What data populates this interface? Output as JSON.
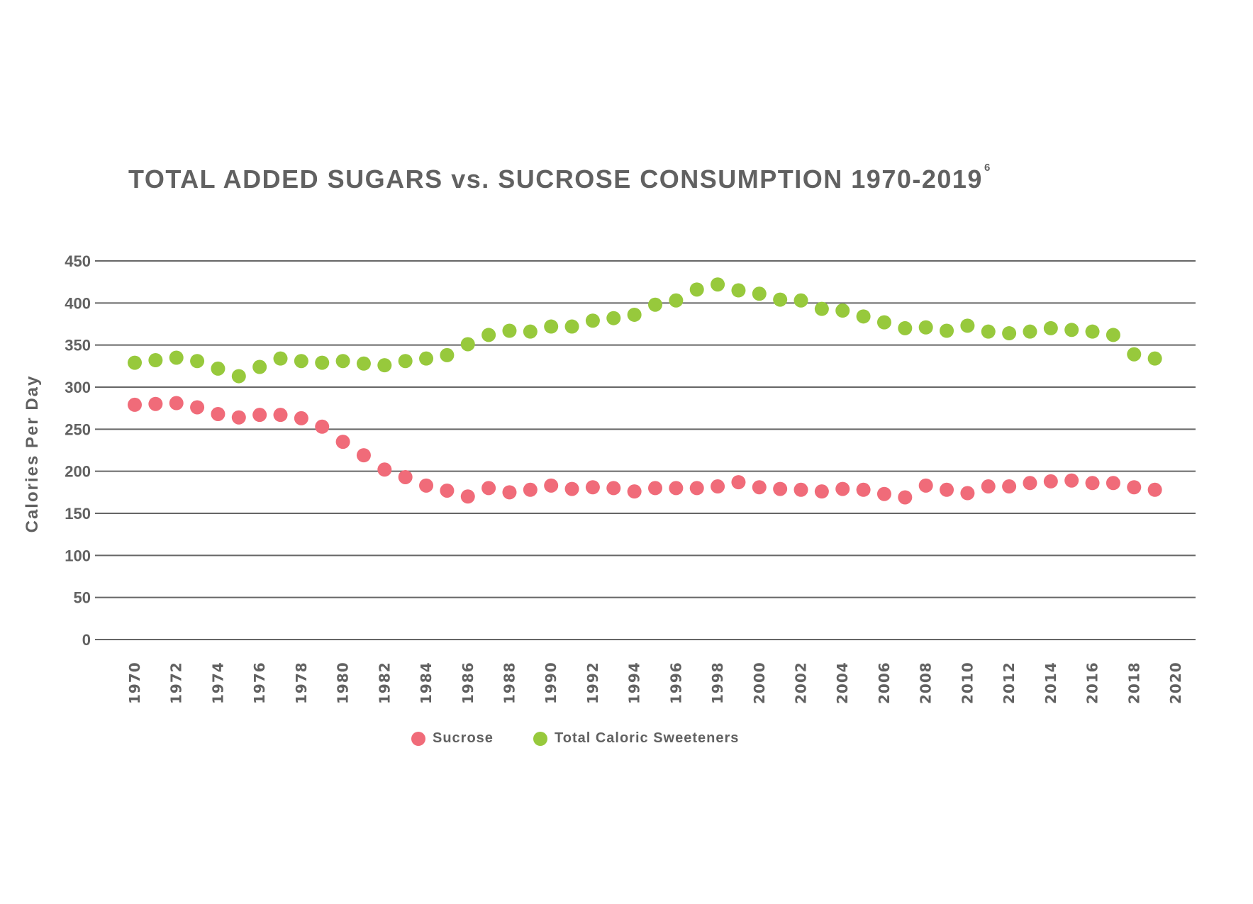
{
  "chart_data": {
    "type": "scatter",
    "title": "TOTAL ADDED SUGARS vs. SUCROSE CONSUMPTION 1970-2019",
    "title_superscript": "6",
    "xlabel": "",
    "ylabel": "Calories Per Day",
    "xlim": [
      1970,
      2020
    ],
    "ylim": [
      0,
      450
    ],
    "x_ticks": [
      "1970",
      "1972",
      "1974",
      "1976",
      "1978",
      "1980",
      "1982",
      "1984",
      "1986",
      "1988",
      "1990",
      "1992",
      "1994",
      "1996",
      "1998",
      "2000",
      "2002",
      "2004",
      "2006",
      "2008",
      "2010",
      "2012",
      "2014",
      "2016",
      "2018",
      "2020"
    ],
    "y_ticks": [
      "0",
      "50",
      "100",
      "150",
      "200",
      "250",
      "300",
      "350",
      "400",
      "450"
    ],
    "grid": "horizontal",
    "legend_position": "bottom",
    "x": [
      1970,
      1971,
      1972,
      1973,
      1974,
      1975,
      1976,
      1977,
      1978,
      1979,
      1980,
      1981,
      1982,
      1983,
      1984,
      1985,
      1986,
      1987,
      1988,
      1989,
      1990,
      1991,
      1992,
      1993,
      1994,
      1995,
      1996,
      1997,
      1998,
      1999,
      2000,
      2001,
      2002,
      2003,
      2004,
      2005,
      2006,
      2007,
      2008,
      2009,
      2010,
      2011,
      2012,
      2013,
      2014,
      2015,
      2016,
      2017,
      2018,
      2019
    ],
    "series": [
      {
        "name": "Sucrose",
        "color": "#f06b79",
        "values": [
          279,
          280,
          281,
          276,
          268,
          264,
          267,
          267,
          263,
          253,
          235,
          219,
          202,
          193,
          183,
          177,
          170,
          180,
          175,
          178,
          183,
          179,
          181,
          180,
          176,
          180,
          180,
          180,
          182,
          187,
          181,
          179,
          178,
          176,
          179,
          178,
          173,
          169,
          183,
          178,
          174,
          182,
          182,
          186,
          188,
          189,
          186,
          186,
          181,
          178
        ]
      },
      {
        "name": "Total Caloric Sweeteners",
        "color": "#97c93c",
        "values": [
          329,
          332,
          335,
          331,
          322,
          313,
          324,
          334,
          331,
          329,
          331,
          328,
          326,
          331,
          334,
          338,
          351,
          362,
          367,
          366,
          372,
          372,
          379,
          382,
          386,
          398,
          403,
          416,
          422,
          415,
          411,
          404,
          403,
          393,
          391,
          384,
          377,
          370,
          371,
          367,
          373,
          366,
          364,
          366,
          370,
          368,
          366,
          362,
          339,
          334
        ]
      }
    ]
  }
}
